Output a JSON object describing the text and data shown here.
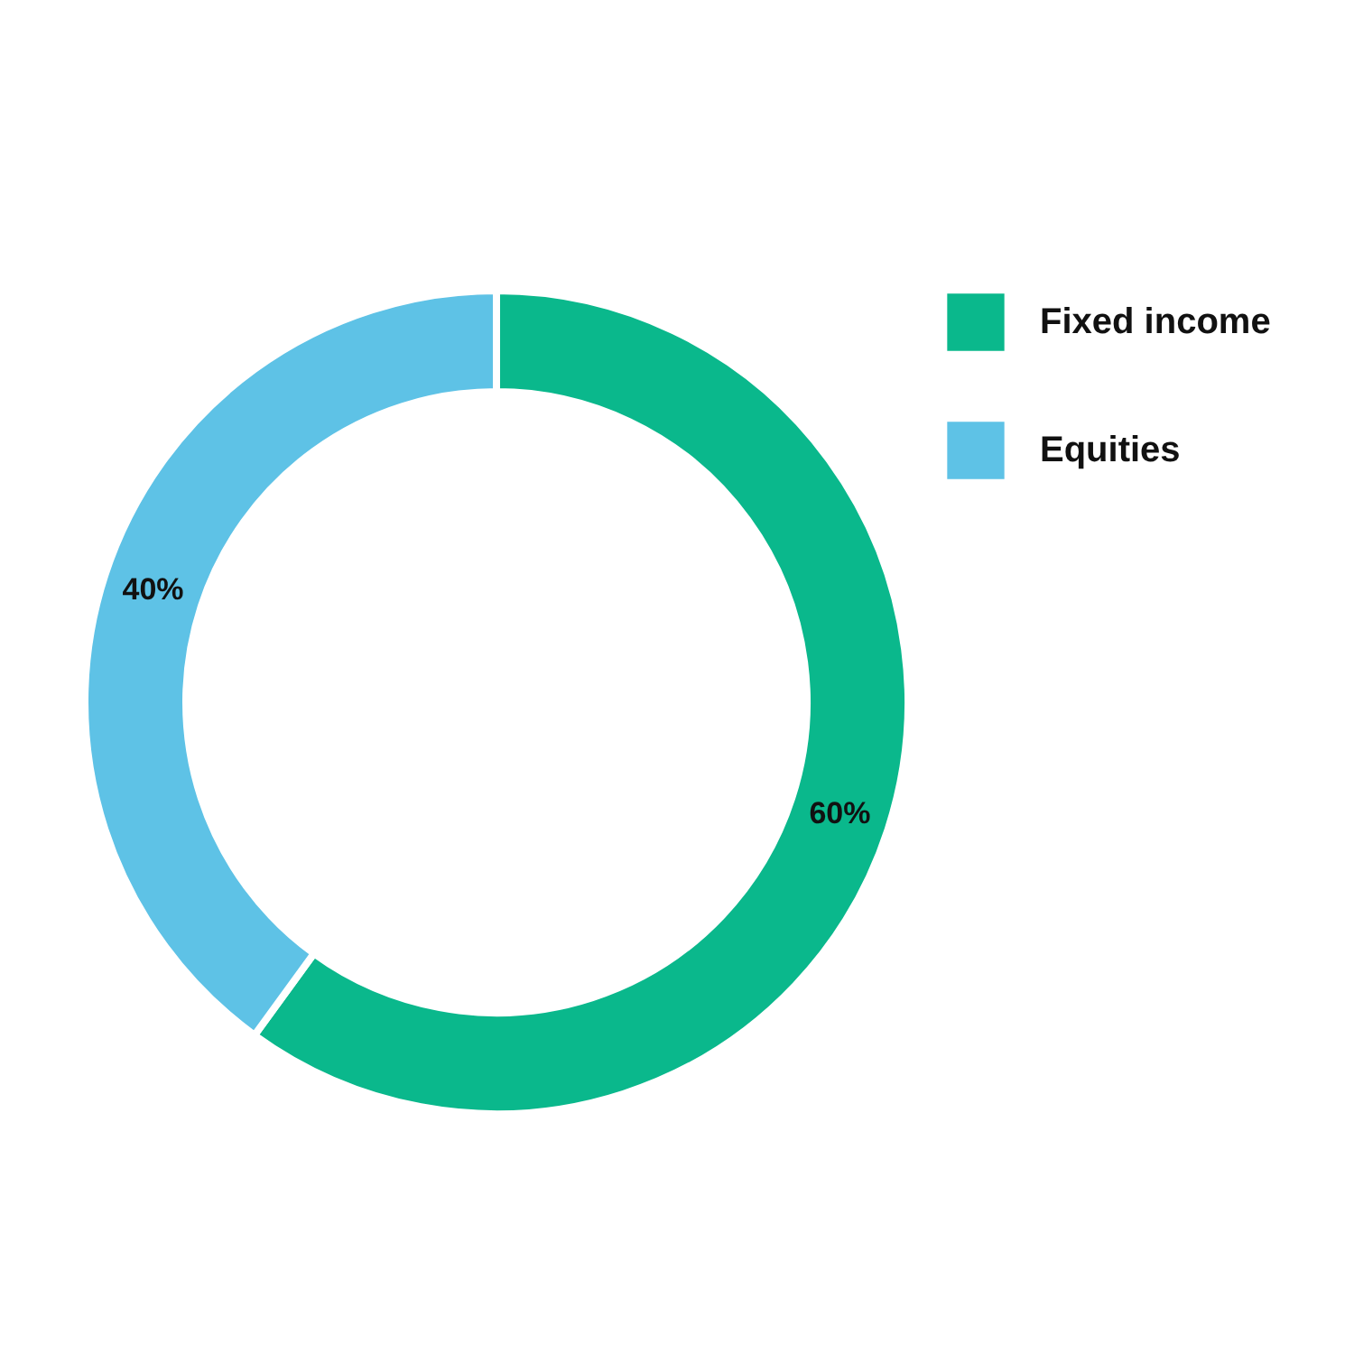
{
  "chart_data": {
    "type": "donut",
    "categories": [
      "Fixed income",
      "Equities"
    ],
    "values": [
      60,
      40
    ],
    "colors": [
      "#0ab88c",
      "#5ec2e6"
    ],
    "value_labels": [
      "60%",
      "40%"
    ],
    "legend": "right"
  }
}
